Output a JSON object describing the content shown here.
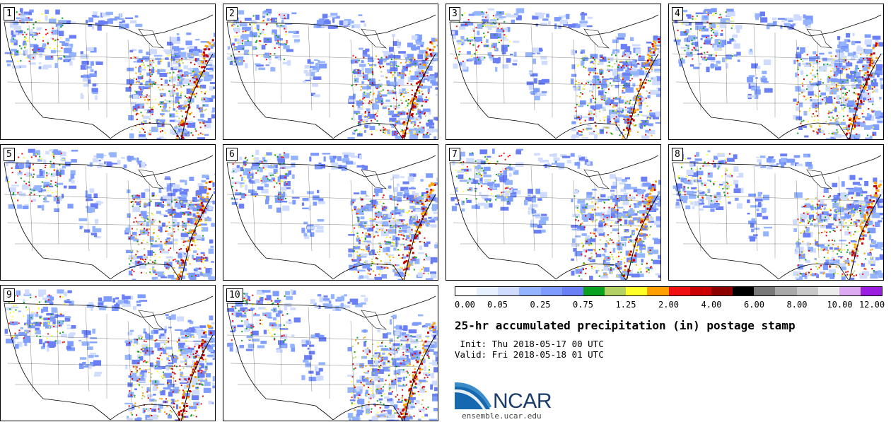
{
  "panels": [
    {
      "label": "1"
    },
    {
      "label": "2"
    },
    {
      "label": "3"
    },
    {
      "label": "4"
    },
    {
      "label": "5"
    },
    {
      "label": "6"
    },
    {
      "label": "7"
    },
    {
      "label": "8"
    },
    {
      "label": "9"
    },
    {
      "label": "10"
    }
  ],
  "colorbar": {
    "colors": [
      "#ffffff",
      "#e6f0ff",
      "#cfdcff",
      "#94b4ff",
      "#7e9cff",
      "#6a7ef5",
      "#0aa020",
      "#b4d264",
      "#ffff28",
      "#ffa000",
      "#f01010",
      "#c80000",
      "#8c0000",
      "#000000",
      "#787878",
      "#a8a8a8",
      "#c8c8c8",
      "#ebebeb",
      "#dcaaf0",
      "#9b1de0"
    ],
    "tick_labels": [
      "0.00",
      "0.05",
      "0.25",
      "0.75",
      "1.25",
      "2.00",
      "4.00",
      "6.00",
      "8.00",
      "10.00",
      "12.00"
    ]
  },
  "title": "25-hr accumulated precipitation (in) postage stamp",
  "init_line": " Init: Thu 2018-05-17 00 UTC",
  "valid_line": "Valid: Fri 2018-05-18 01 UTC",
  "logo_text": "NCAR",
  "url": "ensemble.ucar.edu"
}
